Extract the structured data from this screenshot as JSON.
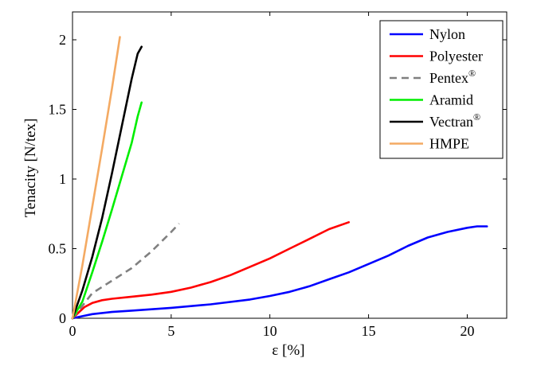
{
  "chart_data": {
    "type": "line",
    "title": "",
    "xlabel": "ε [%]",
    "ylabel": "Tenacity [N/tex]",
    "xlim": [
      0,
      22
    ],
    "ylim": [
      0,
      2.2
    ],
    "xticks": [
      0,
      5,
      10,
      15,
      20
    ],
    "xtick_labels": [
      "0",
      "5",
      "10",
      "15",
      "20"
    ],
    "yticks": [
      0,
      0.5,
      1,
      1.5,
      2
    ],
    "ytick_labels": [
      "0",
      "0.5",
      "1",
      "1.5",
      "2"
    ],
    "grid": false,
    "legend_position": "top-right",
    "series": [
      {
        "name": "Nylon",
        "sup": "",
        "color": "#0000ff",
        "dashed": false,
        "x": [
          0,
          0.5,
          1,
          2,
          3,
          5,
          7,
          9,
          10,
          11,
          12,
          13,
          14,
          15,
          16,
          17,
          18,
          19,
          20,
          20.5,
          21
        ],
        "y": [
          0,
          0.015,
          0.03,
          0.045,
          0.055,
          0.075,
          0.1,
          0.135,
          0.16,
          0.19,
          0.23,
          0.28,
          0.33,
          0.39,
          0.45,
          0.52,
          0.58,
          0.62,
          0.65,
          0.66,
          0.66
        ]
      },
      {
        "name": "Polyester",
        "sup": "",
        "color": "#ff0000",
        "dashed": false,
        "x": [
          0,
          0.3,
          0.6,
          1,
          1.5,
          2,
          3,
          4,
          5,
          6,
          7,
          8,
          9,
          10,
          11,
          12,
          13,
          14
        ],
        "y": [
          0,
          0.04,
          0.08,
          0.11,
          0.13,
          0.14,
          0.155,
          0.17,
          0.19,
          0.22,
          0.26,
          0.31,
          0.37,
          0.43,
          0.5,
          0.57,
          0.64,
          0.69
        ]
      },
      {
        "name": "Pentex",
        "sup": "®",
        "color": "#808080",
        "dashed": true,
        "x": [
          0,
          0.5,
          1,
          2,
          3,
          4,
          5,
          5.4
        ],
        "y": [
          0,
          0.09,
          0.18,
          0.27,
          0.36,
          0.48,
          0.62,
          0.68
        ]
      },
      {
        "name": "Aramid",
        "sup": "",
        "color": "#00ee00",
        "dashed": false,
        "x": [
          0,
          0.5,
          1,
          1.5,
          2,
          2.5,
          3,
          3.3,
          3.5
        ],
        "y": [
          0,
          0.12,
          0.33,
          0.55,
          0.78,
          1.02,
          1.26,
          1.45,
          1.55
        ]
      },
      {
        "name": "Vectran",
        "sup": "®",
        "color": "#000000",
        "dashed": false,
        "x": [
          0,
          0.5,
          1,
          1.5,
          2,
          2.5,
          3,
          3.3,
          3.5
        ],
        "y": [
          0,
          0.2,
          0.44,
          0.72,
          1.04,
          1.38,
          1.72,
          1.9,
          1.95
        ]
      },
      {
        "name": "HMPE",
        "sup": "",
        "color": "#f4aa63",
        "dashed": false,
        "x": [
          0,
          0.5,
          1,
          1.5,
          2,
          2.4
        ],
        "y": [
          0,
          0.38,
          0.8,
          1.22,
          1.65,
          2.02
        ]
      }
    ]
  }
}
